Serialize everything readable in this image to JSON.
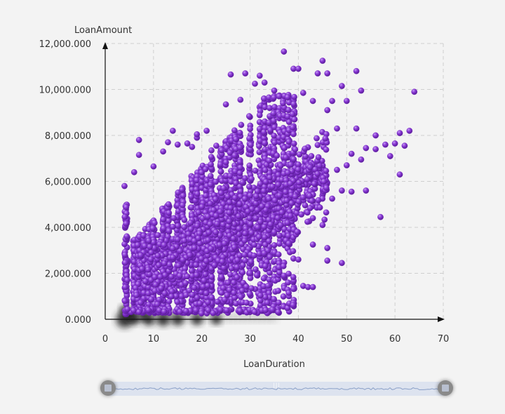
{
  "chart_data": {
    "type": "scatter",
    "xlabel": "LoanDuration",
    "ylabel": "LoanAmount",
    "xlim": [
      0,
      70
    ],
    "ylim": [
      0,
      12000
    ],
    "x_ticks": [
      "0",
      "10",
      "20",
      "30",
      "40",
      "50",
      "60",
      "70"
    ],
    "y_ticks": [
      "0.000",
      "2,000.000",
      "4,000.000",
      "6,000.000",
      "8,000.000",
      "10,000.000",
      "12,000.000"
    ],
    "grid": true,
    "point_color": "#7e2fc9",
    "points": [
      [
        37,
        11650
      ],
      [
        45,
        11250
      ],
      [
        52,
        10800
      ],
      [
        29,
        10700
      ],
      [
        26,
        10650
      ],
      [
        32,
        10600
      ],
      [
        39,
        10900
      ],
      [
        40,
        10900
      ],
      [
        46,
        10700
      ],
      [
        44,
        10700
      ],
      [
        31,
        10250
      ],
      [
        33,
        10300
      ],
      [
        49,
        10150
      ],
      [
        53,
        9950
      ],
      [
        64,
        9900
      ],
      [
        35,
        9950
      ],
      [
        41,
        9850
      ],
      [
        47,
        9500
      ],
      [
        50,
        9500
      ],
      [
        25,
        9350
      ],
      [
        28,
        9550
      ],
      [
        36,
        9700
      ],
      [
        43,
        9500
      ],
      [
        46,
        9100
      ],
      [
        48,
        8300
      ],
      [
        52,
        8300
      ],
      [
        56,
        8000
      ],
      [
        61,
        8100
      ],
      [
        63,
        8200
      ],
      [
        58,
        7600
      ],
      [
        60,
        7650
      ],
      [
        62,
        7550
      ],
      [
        59,
        7100
      ],
      [
        54,
        7450
      ],
      [
        56,
        7400
      ],
      [
        51,
        7200
      ],
      [
        53,
        6950
      ],
      [
        50,
        6700
      ],
      [
        48,
        6500
      ],
      [
        61,
        6300
      ],
      [
        49,
        5600
      ],
      [
        51,
        5550
      ],
      [
        54,
        5600
      ],
      [
        47,
        5250
      ],
      [
        57,
        4450
      ],
      [
        43,
        4400
      ],
      [
        45,
        4100
      ],
      [
        43,
        3250
      ],
      [
        46,
        3100
      ],
      [
        46,
        2550
      ],
      [
        49,
        2450
      ],
      [
        41,
        1450
      ],
      [
        42,
        1400
      ],
      [
        43,
        1400
      ],
      [
        40,
        2600
      ],
      [
        38,
        3300
      ],
      [
        7,
        7800
      ],
      [
        7,
        7150
      ],
      [
        10,
        6650
      ],
      [
        6,
        6400
      ],
      [
        4,
        5800
      ],
      [
        14,
        8200
      ],
      [
        13,
        7700
      ],
      [
        12,
        7300
      ],
      [
        15,
        7600
      ],
      [
        17,
        7650
      ],
      [
        18,
        7500
      ],
      [
        19,
        7900
      ],
      [
        21,
        8200
      ],
      [
        19,
        8050
      ],
      [
        22,
        7350
      ],
      [
        23,
        7550
      ]
    ]
  },
  "slider": {
    "range": "full"
  }
}
